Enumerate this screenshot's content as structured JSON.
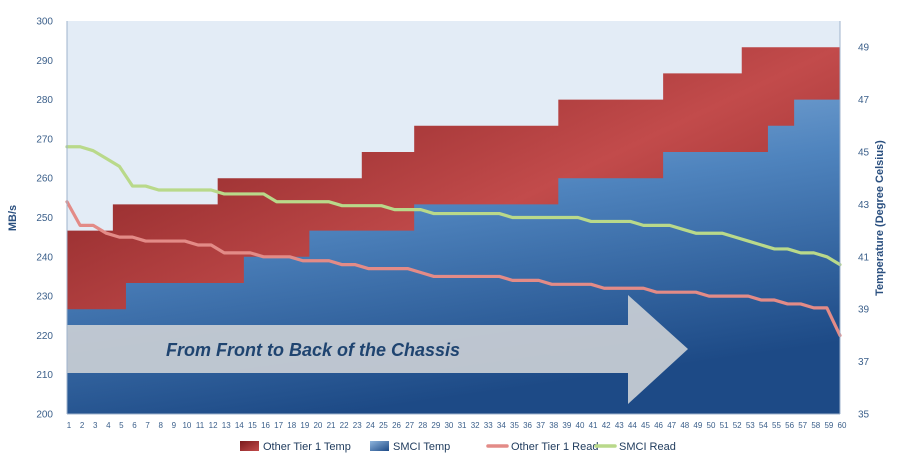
{
  "chart_data": {
    "type": "area",
    "x": [
      1,
      2,
      3,
      4,
      5,
      6,
      7,
      8,
      9,
      10,
      11,
      12,
      13,
      14,
      15,
      16,
      17,
      18,
      19,
      20,
      21,
      22,
      23,
      24,
      25,
      26,
      27,
      28,
      29,
      30,
      31,
      32,
      33,
      34,
      35,
      36,
      37,
      38,
      39,
      40,
      41,
      42,
      43,
      44,
      45,
      46,
      47,
      48,
      49,
      50,
      51,
      52,
      53,
      54,
      55,
      56,
      57,
      58,
      59,
      60
    ],
    "ylabel": "MB/s",
    "ylim": [
      200,
      300
    ],
    "yticks": [
      200,
      210,
      220,
      230,
      240,
      250,
      260,
      270,
      280,
      290,
      300
    ],
    "y2label": "Temperature (Degree Celsius)",
    "y2lim": [
      35,
      50
    ],
    "y2ticks": [
      35,
      37,
      39,
      41,
      43,
      45,
      47,
      49
    ],
    "grid": false,
    "legend_position": "bottom",
    "annotation": "From Front to Back of the Chassis",
    "series": [
      {
        "name": "Other Tier 1 Temp",
        "axis": "right",
        "kind": "area",
        "color": "#a3282a",
        "values": [
          42,
          42,
          42,
          42,
          43,
          43,
          43,
          43,
          43,
          43,
          43,
          43,
          44,
          44,
          44,
          44,
          44,
          44,
          44,
          44,
          44,
          44,
          44,
          45,
          45,
          45,
          45,
          46,
          46,
          46,
          46,
          46,
          46,
          46,
          46,
          46,
          46,
          46,
          47,
          47,
          47,
          47,
          47,
          47,
          47,
          47,
          48,
          48,
          48,
          48,
          48,
          48,
          49,
          49,
          49,
          49,
          49,
          49,
          49,
          49
        ]
      },
      {
        "name": "SMCI Temp",
        "axis": "right",
        "kind": "area",
        "color": "#3f73ad",
        "values": [
          39,
          39,
          39,
          39,
          39,
          40,
          40,
          40,
          40,
          40,
          40,
          40,
          40,
          40,
          41,
          41,
          41,
          41,
          41,
          42,
          42,
          42,
          42,
          42,
          42,
          42,
          42,
          43,
          43,
          43,
          43,
          43,
          43,
          43,
          43,
          43,
          43,
          43,
          44,
          44,
          44,
          44,
          44,
          44,
          44,
          44,
          45,
          45,
          45,
          45,
          45,
          45,
          45,
          45,
          46,
          46,
          47,
          47,
          47,
          47
        ]
      },
      {
        "name": "Other Tier 1 Read",
        "axis": "left",
        "kind": "line",
        "color": "#e38b87",
        "values": [
          254,
          248,
          248,
          246,
          245,
          245,
          244,
          244,
          244,
          244,
          243,
          243,
          241,
          241,
          241,
          240,
          240,
          240,
          239,
          239,
          239,
          238,
          238,
          237,
          237,
          237,
          237,
          236,
          235,
          235,
          235,
          235,
          235,
          235,
          234,
          234,
          234,
          233,
          233,
          233,
          233,
          232,
          232,
          232,
          232,
          231,
          231,
          231,
          231,
          230,
          230,
          230,
          230,
          229,
          229,
          228,
          228,
          227,
          227,
          220
        ]
      },
      {
        "name": "SMCI Read",
        "axis": "left",
        "kind": "line",
        "color": "#b9d98a",
        "values": [
          268,
          268,
          267,
          265,
          263,
          258,
          258,
          257,
          257,
          257,
          257,
          257,
          256,
          256,
          256,
          256,
          254,
          254,
          254,
          254,
          254,
          253,
          253,
          253,
          253,
          252,
          252,
          252,
          251,
          251,
          251,
          251,
          251,
          251,
          250,
          250,
          250,
          250,
          250,
          250,
          249,
          249,
          249,
          249,
          248,
          248,
          248,
          247,
          246,
          246,
          246,
          245,
          244,
          243,
          242,
          242,
          241,
          241,
          240,
          238
        ]
      }
    ]
  }
}
